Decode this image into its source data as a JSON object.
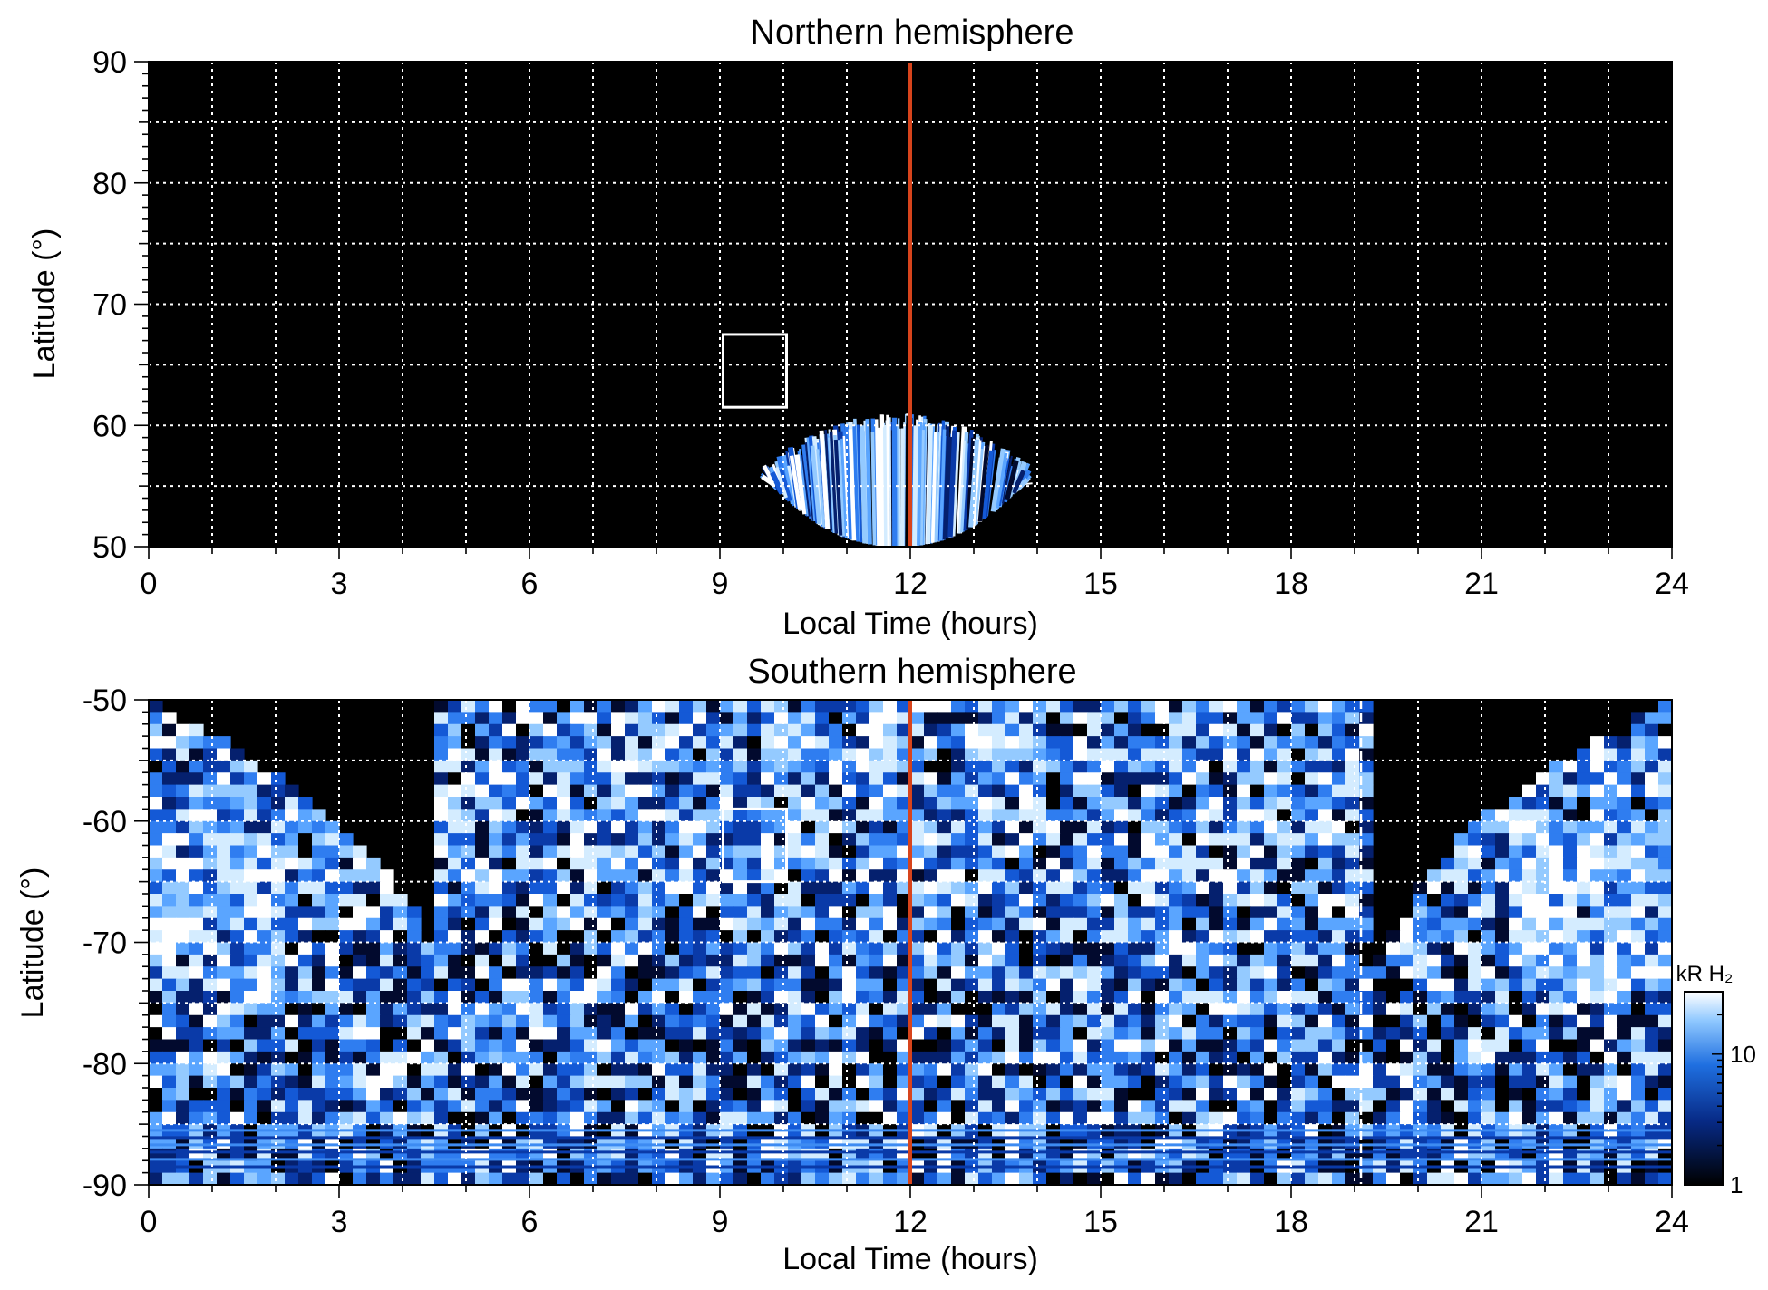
{
  "chart_data": [
    {
      "type": "heatmap",
      "title": "Northern hemisphere",
      "xlabel": "Local Time (hours)",
      "ylabel": "Latitude (°)",
      "xlim": [
        0,
        24
      ],
      "ylim": [
        50,
        90
      ],
      "xticks": [
        "0",
        "3",
        "6",
        "9",
        "12",
        "15",
        "18",
        "21",
        "24"
      ],
      "yticks": [
        "50",
        "60",
        "70",
        "80",
        "90"
      ],
      "grid": true,
      "background": "#000000",
      "colormap": "black-blue-white",
      "marker_line": {
        "x": 12,
        "color": "#d7441c"
      },
      "box": {
        "x0": 9.05,
        "x1": 10.05,
        "y0": 61.5,
        "y1": 67.5
      },
      "emission_region": {
        "lt_min": 9.8,
        "lt_max": 13.8,
        "lat_min": 50,
        "lat_max": 61
      }
    },
    {
      "type": "heatmap",
      "title": "Southern hemisphere",
      "xlabel": "Local Time (hours)",
      "ylabel": "Latitude (°)",
      "xlim": [
        0,
        24
      ],
      "ylim": [
        -90,
        -50
      ],
      "xticks": [
        "0",
        "3",
        "6",
        "9",
        "12",
        "15",
        "18",
        "21",
        "24"
      ],
      "yticks": [
        "-90",
        "-80",
        "-70",
        "-60",
        "-50"
      ],
      "grid": true,
      "background": "#000000",
      "colormap": "black-blue-white",
      "marker_line": {
        "x": 12,
        "color": "#d7441c"
      },
      "secondary_line": {
        "x": 19.1,
        "color": "#ffffff"
      },
      "box": {
        "x0": 9.05,
        "x1": 10.05,
        "y0": -65.0,
        "y1": -59.0
      },
      "emission_region": {
        "lt_min": 0,
        "lt_max": 24,
        "lat_min": -90,
        "lat_max": -50
      },
      "colorbar": {
        "label": "kR H₂",
        "scale": "log",
        "range": [
          1,
          30
        ],
        "ticks": [
          "1",
          "10"
        ]
      }
    }
  ]
}
